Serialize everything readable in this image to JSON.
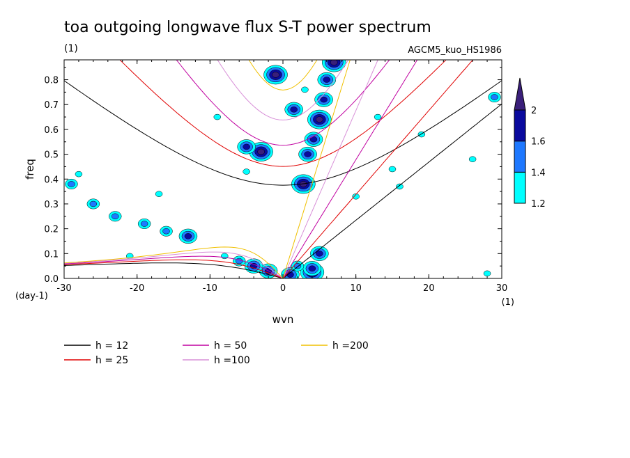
{
  "chart_data": {
    "type": "heatmap",
    "title": "toa outgoing longwave flux S-T power spectrum",
    "title_unit": "(1)",
    "model_label": "AGCM5_kuo_HS1986",
    "xlabel": "wvn",
    "ylabel": "freq",
    "x_unit": "(1)",
    "y_unit": "(day-1)",
    "xlim": [
      -30,
      30
    ],
    "ylim": [
      0,
      0.88
    ],
    "x_ticks": [
      -30,
      -20,
      -10,
      0,
      10,
      20,
      30
    ],
    "x_tick_labels": [
      "-30",
      "-20",
      "-10",
      "0",
      "10",
      "20",
      "30"
    ],
    "y_ticks": [
      0,
      0.1,
      0.2,
      0.3,
      0.4,
      0.5,
      0.6,
      0.7,
      0.8
    ],
    "y_tick_labels": [
      "0.0",
      "0.1",
      "0.2",
      "0.3",
      "0.4",
      "0.5",
      "0.6",
      "0.7",
      "0.8"
    ],
    "colorbar": {
      "levels": [
        1.2,
        1.4,
        1.6,
        2
      ],
      "level_labels": [
        "1.2",
        "1.4",
        "1.6",
        "2"
      ],
      "colors": [
        "#00ffff",
        "#1e78ff",
        "#0a0a9e",
        "#3a1f7a"
      ]
    },
    "dispersion_curves": [
      {
        "name": "h = 12",
        "h": 12,
        "color": "#000000"
      },
      {
        "name": "h = 25",
        "h": 25,
        "color": "#e00000"
      },
      {
        "name": "h = 50",
        "h": 50,
        "color": "#c000a0"
      },
      {
        "name": "h =100",
        "h": 100,
        "color": "#d890d8"
      },
      {
        "name": "h =200",
        "h": 200,
        "color": "#f0c000"
      }
    ],
    "power_regions": [
      {
        "x": 4.0,
        "y": 0.025,
        "level": 2
      },
      {
        "x": 4.0,
        "y": 0.04,
        "level": 1.6
      },
      {
        "x": 1.0,
        "y": 0.015,
        "level": 1.6
      },
      {
        "x": -2.0,
        "y": 0.03,
        "level": 1.6
      },
      {
        "x": -4.0,
        "y": 0.05,
        "level": 1.6
      },
      {
        "x": -6.0,
        "y": 0.07,
        "level": 1.4
      },
      {
        "x": -8.0,
        "y": 0.09,
        "level": 1.2
      },
      {
        "x": 5.0,
        "y": 0.1,
        "level": 1.6
      },
      {
        "x": 2.0,
        "y": 0.05,
        "level": 1.4
      },
      {
        "x": -13.0,
        "y": 0.17,
        "level": 1.6
      },
      {
        "x": -16.0,
        "y": 0.19,
        "level": 1.4
      },
      {
        "x": -19.0,
        "y": 0.22,
        "level": 1.4
      },
      {
        "x": -23.0,
        "y": 0.25,
        "level": 1.4
      },
      {
        "x": -26.0,
        "y": 0.3,
        "level": 1.4
      },
      {
        "x": -29.0,
        "y": 0.38,
        "level": 1.4
      },
      {
        "x": -28.0,
        "y": 0.42,
        "level": 1.2
      },
      {
        "x": -17.0,
        "y": 0.34,
        "level": 1.2
      },
      {
        "x": -5.0,
        "y": 0.43,
        "level": 1.2
      },
      {
        "x": 2.8,
        "y": 0.38,
        "level": 2
      },
      {
        "x": 3.4,
        "y": 0.5,
        "level": 1.6
      },
      {
        "x": 4.2,
        "y": 0.56,
        "level": 1.6
      },
      {
        "x": 5.0,
        "y": 0.64,
        "level": 2
      },
      {
        "x": 5.6,
        "y": 0.72,
        "level": 1.6
      },
      {
        "x": 6.0,
        "y": 0.8,
        "level": 1.6
      },
      {
        "x": 7.0,
        "y": 0.87,
        "level": 2
      },
      {
        "x": -3.0,
        "y": 0.51,
        "level": 2
      },
      {
        "x": -5.0,
        "y": 0.53,
        "level": 1.6
      },
      {
        "x": -1.0,
        "y": 0.82,
        "level": 2
      },
      {
        "x": 1.5,
        "y": 0.68,
        "level": 1.6
      },
      {
        "x": 3.0,
        "y": 0.76,
        "level": 1.2
      },
      {
        "x": 15.0,
        "y": 0.44,
        "level": 1.2
      },
      {
        "x": 16.0,
        "y": 0.37,
        "level": 1.2
      },
      {
        "x": 19.0,
        "y": 0.58,
        "level": 1.2
      },
      {
        "x": 26.0,
        "y": 0.48,
        "level": 1.2
      },
      {
        "x": 29.0,
        "y": 0.73,
        "level": 1.4
      },
      {
        "x": 28.0,
        "y": 0.02,
        "level": 1.2
      },
      {
        "x": 13.0,
        "y": 0.65,
        "level": 1.2
      },
      {
        "x": 10.0,
        "y": 0.33,
        "level": 1.2
      },
      {
        "x": -9.0,
        "y": 0.65,
        "level": 1.2
      },
      {
        "x": -21.0,
        "y": 0.09,
        "level": 1.2
      }
    ]
  }
}
